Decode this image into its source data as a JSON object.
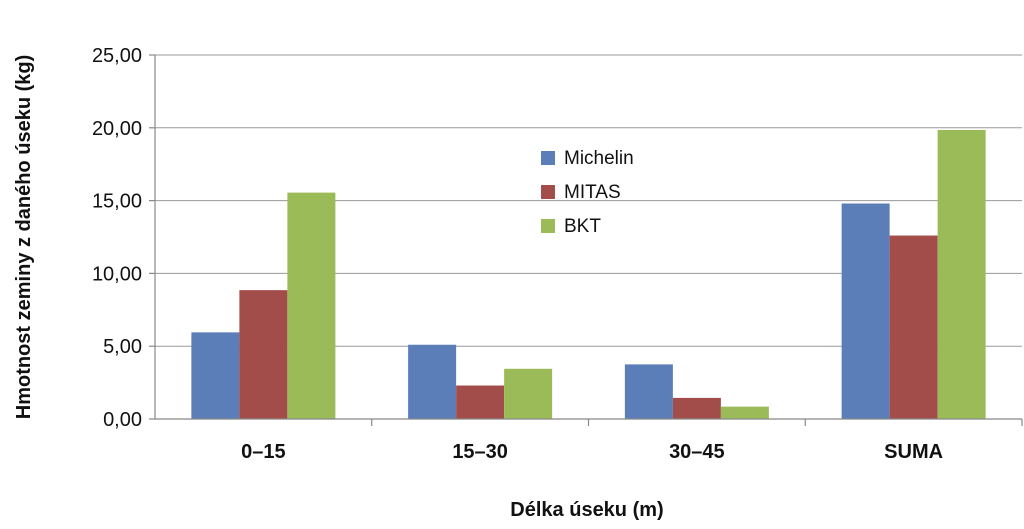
{
  "chart_data": {
    "type": "bar",
    "categories": [
      "0–15",
      "15–30",
      "30–45",
      "SUMA"
    ],
    "series": [
      {
        "name": "Michelin",
        "values": [
          5.95,
          5.1,
          3.75,
          14.8
        ],
        "color": "#5b7db8"
      },
      {
        "name": "MITAS",
        "values": [
          8.85,
          2.3,
          1.45,
          12.6
        ],
        "color": "#a24d4a"
      },
      {
        "name": "BKT",
        "values": [
          15.55,
          3.45,
          0.85,
          19.85
        ],
        "color": "#9bbb59"
      }
    ],
    "xlabel": "Délka úseku (m)",
    "ylabel": "Hmotnost zeminy z daného úseku (kg)",
    "ylim": [
      0,
      25
    ],
    "yticks": [
      "0,00",
      "5,00",
      "10,00",
      "15,00",
      "20,00",
      "25,00"
    ],
    "grid": true,
    "legend_position": "top-center"
  }
}
